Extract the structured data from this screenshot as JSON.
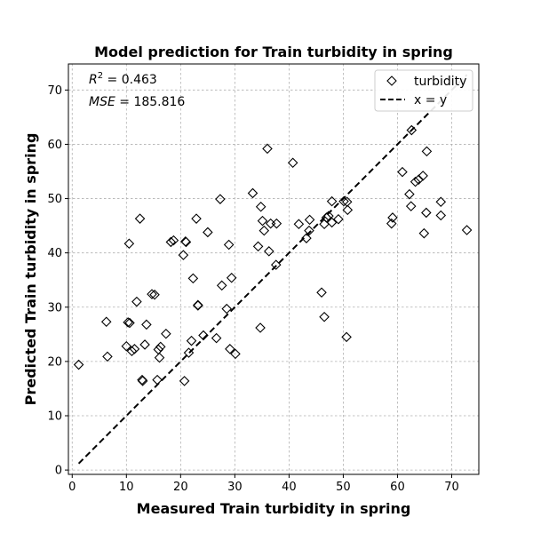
{
  "chart_data": {
    "type": "scatter",
    "title": "Model prediction for Train turbidity in spring",
    "xlabel": "Measured Train turbidity in spring",
    "ylabel": "Predicted Train turbidity in spring",
    "xlim": [
      -0.7,
      75
    ],
    "ylim": [
      -0.8,
      74.8
    ],
    "xticks": [
      0,
      10,
      20,
      30,
      40,
      50,
      60,
      70
    ],
    "yticks": [
      0,
      10,
      20,
      30,
      40,
      50,
      60,
      70
    ],
    "grid": true,
    "legend_position": "top-right",
    "stats": {
      "r2_label": "R",
      "r2_sup": "2",
      "r2_value": " = 0.463",
      "mse_label": "MSE",
      "mse_value": " = 185.816"
    },
    "series": [
      {
        "name": "turbidity",
        "marker": "diamond",
        "color": "#000000",
        "points": [
          [
            1.2,
            19.4
          ],
          [
            6.3,
            27.3
          ],
          [
            6.5,
            20.9
          ],
          [
            10.0,
            22.8
          ],
          [
            10.3,
            27.2
          ],
          [
            10.5,
            41.7
          ],
          [
            10.6,
            27.1
          ],
          [
            11.0,
            21.9
          ],
          [
            11.5,
            22.3
          ],
          [
            11.9,
            31.0
          ],
          [
            12.5,
            46.3
          ],
          [
            12.9,
            16.6
          ],
          [
            13.0,
            16.4
          ],
          [
            13.4,
            23.1
          ],
          [
            13.7,
            26.8
          ],
          [
            14.7,
            32.4
          ],
          [
            15.2,
            32.3
          ],
          [
            15.7,
            16.6
          ],
          [
            15.9,
            22.2
          ],
          [
            16.1,
            20.7
          ],
          [
            16.3,
            22.7
          ],
          [
            17.3,
            25.1
          ],
          [
            18.2,
            42.0
          ],
          [
            18.7,
            42.3
          ],
          [
            20.5,
            39.6
          ],
          [
            20.7,
            16.4
          ],
          [
            20.9,
            42.1
          ],
          [
            21.0,
            42.0
          ],
          [
            21.5,
            21.6
          ],
          [
            22.0,
            23.8
          ],
          [
            22.3,
            35.3
          ],
          [
            22.9,
            46.3
          ],
          [
            23.2,
            30.3
          ],
          [
            23.2,
            30.4
          ],
          [
            24.2,
            24.8
          ],
          [
            25.0,
            43.8
          ],
          [
            26.6,
            24.3
          ],
          [
            27.3,
            49.9
          ],
          [
            27.6,
            34.0
          ],
          [
            28.5,
            29.7
          ],
          [
            28.9,
            41.5
          ],
          [
            29.1,
            22.3
          ],
          [
            29.4,
            35.4
          ],
          [
            30.1,
            21.4
          ],
          [
            33.3,
            51.0
          ],
          [
            34.3,
            41.2
          ],
          [
            34.7,
            26.2
          ],
          [
            34.8,
            48.5
          ],
          [
            35.1,
            45.9
          ],
          [
            35.4,
            44.1
          ],
          [
            36.0,
            59.2
          ],
          [
            36.3,
            40.3
          ],
          [
            36.6,
            45.4
          ],
          [
            37.6,
            37.8
          ],
          [
            37.7,
            45.4
          ],
          [
            40.7,
            56.6
          ],
          [
            41.8,
            45.3
          ],
          [
            43.2,
            42.7
          ],
          [
            43.7,
            44.1
          ],
          [
            43.8,
            46.1
          ],
          [
            46.0,
            32.7
          ],
          [
            46.5,
            28.2
          ],
          [
            46.5,
            45.3
          ],
          [
            46.9,
            46.5
          ],
          [
            47.3,
            46.8
          ],
          [
            47.9,
            49.5
          ],
          [
            47.9,
            45.6
          ],
          [
            49.1,
            46.2
          ],
          [
            50.1,
            49.5
          ],
          [
            50.6,
            24.5
          ],
          [
            50.7,
            49.4
          ],
          [
            50.8,
            47.9
          ],
          [
            58.9,
            45.4
          ],
          [
            59.1,
            46.5
          ],
          [
            60.9,
            54.9
          ],
          [
            62.2,
            50.8
          ],
          [
            62.5,
            48.6
          ],
          [
            62.6,
            62.6
          ],
          [
            63.3,
            53.1
          ],
          [
            63.9,
            53.5
          ],
          [
            64.7,
            54.2
          ],
          [
            64.9,
            43.6
          ],
          [
            65.3,
            47.4
          ],
          [
            65.4,
            58.7
          ],
          [
            68.0,
            49.4
          ],
          [
            68.0,
            46.9
          ],
          [
            72.8,
            44.2
          ]
        ]
      },
      {
        "name": "x = y",
        "line_style": "dashed",
        "color": "#000000",
        "points": [
          [
            1.2,
            1.2
          ],
          [
            72.8,
            72.8
          ]
        ]
      }
    ]
  }
}
